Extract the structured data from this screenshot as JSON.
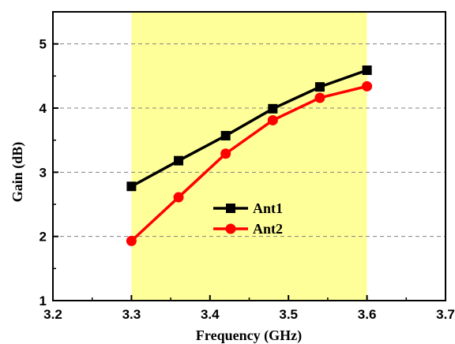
{
  "chart_data": {
    "type": "line",
    "xlabel": "Frequency (GHz)",
    "ylabel": "Gain (dB)",
    "xlim": [
      3.2,
      3.7
    ],
    "ylim": [
      1,
      5.5
    ],
    "xticks": [
      "3.2",
      "3.3",
      "3.4",
      "3.5",
      "3.6",
      "3.7"
    ],
    "yticks": [
      "1",
      "2",
      "3",
      "4",
      "5"
    ],
    "grid": "horizontal-dashed",
    "highlight_band": {
      "x_start": 3.3,
      "x_end": 3.6,
      "color": "#ffff99"
    },
    "legend_position": "center",
    "series": [
      {
        "name": "Ant1",
        "color": "#000000",
        "marker": "square",
        "x": [
          3.3,
          3.36,
          3.42,
          3.48,
          3.54,
          3.6
        ],
        "y": [
          2.78,
          3.18,
          3.57,
          3.99,
          4.33,
          4.59
        ]
      },
      {
        "name": "Ant2",
        "color": "#ff0000",
        "marker": "circle",
        "x": [
          3.3,
          3.36,
          3.42,
          3.48,
          3.54,
          3.6
        ],
        "y": [
          1.93,
          2.61,
          3.29,
          3.81,
          4.16,
          4.34
        ]
      }
    ]
  }
}
